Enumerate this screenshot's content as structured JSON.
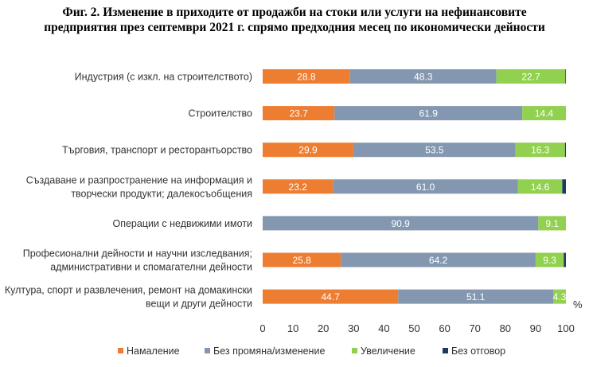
{
  "chart_data": {
    "type": "bar",
    "orientation": "horizontal",
    "stacked": true,
    "title": [
      "Фиг. 2. Изменение в приходите от продажби на стоки или услуги на нефинансовите",
      "предприятия през септември 2021 г. спрямо предходния месец по икономически дейности"
    ],
    "categories": [
      [
        "Индустрия (с изкл. на строителството)"
      ],
      [
        "Строителство"
      ],
      [
        "Търговия, транспорт и ресторантьорство"
      ],
      [
        "Създаване и разпространение на информация и",
        "творчески продукти; далекосъобщения"
      ],
      [
        "Операции с недвижими имоти"
      ],
      [
        "Професионални дейности и научни изследвания;",
        "административни и спомагателни дейности"
      ],
      [
        "Култура, спорт и развлечения, ремонт на домакински",
        "вещи и други дейности"
      ]
    ],
    "series": [
      {
        "name": "Намаление",
        "color": "#ED7D31",
        "values": [
          28.8,
          23.7,
          29.9,
          23.2,
          0,
          25.8,
          44.7
        ]
      },
      {
        "name": "Без промяна/изменение",
        "color": "#8497B0",
        "values": [
          48.3,
          61.9,
          53.5,
          61.0,
          90.9,
          64.2,
          51.1
        ]
      },
      {
        "name": "Увеличение",
        "color": "#92D050",
        "values": [
          22.7,
          14.4,
          16.3,
          14.6,
          9.1,
          9.3,
          4.3
        ]
      },
      {
        "name": "Без отговор",
        "color": "#1F3864",
        "values": [
          0.2,
          0,
          0.3,
          1.2,
          0,
          0.7,
          0
        ]
      }
    ],
    "labeled_series": [
      "Намаление",
      "Без промяна/изменение",
      "Увеличение"
    ],
    "xlim": [
      0,
      100
    ],
    "xticks": [
      0,
      10,
      20,
      30,
      40,
      50,
      60,
      70,
      80,
      90,
      100
    ],
    "unit_label": "%",
    "grid": false,
    "legend_position": "bottom"
  }
}
